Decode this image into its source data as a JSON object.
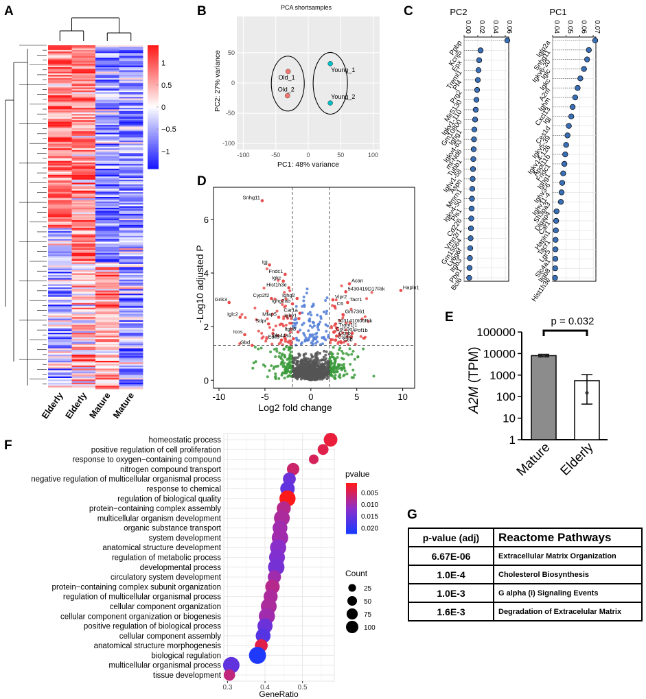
{
  "panel_labels": {
    "a": "A",
    "b": "B",
    "c": "C",
    "d": "D",
    "e": "E",
    "f": "F",
    "g": "G"
  },
  "chart_data": [
    {
      "type": "heatmap",
      "panel": "A",
      "columns": [
        "Elderly",
        "Elderly",
        "Mature",
        "Mature"
      ],
      "colorbar_ticks": [
        {
          "v": 1,
          "label": "1"
        },
        {
          "v": 0.5,
          "label": "0.5"
        },
        {
          "v": 0,
          "label": "0"
        },
        {
          "v": -0.5,
          "label": "−0.5"
        },
        {
          "v": -1,
          "label": "−1"
        }
      ],
      "colorbar_range": [
        -1.4,
        1.4
      ],
      "colors": {
        "low": "#1a1aff",
        "mid": "#ffffff",
        "high": "#ff1a1a"
      }
    },
    {
      "type": "scatter",
      "panel": "B",
      "title": "PCA shortsamples",
      "xlabel": "PC1: 48% variance",
      "ylabel": "PC2: 27% variance",
      "xlim": [
        -110,
        110
      ],
      "ylim": [
        -110,
        110
      ],
      "xticks": [
        -100,
        -50,
        0,
        50,
        100
      ],
      "yticks": [
        50,
        0,
        -50,
        -100
      ],
      "points": [
        {
          "label": "Old_1",
          "x": -31,
          "y": 19,
          "group": "old"
        },
        {
          "label": "Old_2",
          "x": -32,
          "y": -21,
          "group": "old"
        },
        {
          "label": "Young_1",
          "x": 34,
          "y": 32,
          "group": "young"
        },
        {
          "label": "Young_2",
          "x": 34,
          "y": -33,
          "group": "young"
        }
      ],
      "colors": {
        "old": "#f8766d",
        "young": "#00bfc4",
        "panel_bg": "#ebebeb"
      }
    },
    {
      "type": "scatter",
      "panel": "C-PC2",
      "title": "PC2",
      "axis_range": [
        0.0,
        0.065
      ],
      "axis_ticks": [
        {
          "v": 0,
          "label": "0.00"
        },
        {
          "v": 0.02,
          "label": "0.02"
        },
        {
          "v": 0.04,
          "label": "0.04"
        },
        {
          "v": 0.06,
          "label": "0.06"
        }
      ],
      "genes": [
        "Ppbp",
        "Kcnj5",
        "Epx",
        "Treml1",
        "Pf4",
        "Prg2",
        "Mir5130",
        "Igkv1-110",
        "Gm10800",
        "Ighg1",
        "Igkv4-63",
        "mt-Nd6",
        "Tubb1",
        "Ighv1-58",
        "Aspn",
        "Mmrn1",
        "Igkv4-50",
        "Pls1",
        "Cd226",
        "Vmn2r1",
        "Gm15564",
        "Ly6g6f",
        "Itgb3",
        "Pbp1",
        "Bcl6"
      ],
      "values": [
        0.063,
        0.024,
        0.022,
        0.021,
        0.02,
        0.019,
        0.018,
        0.017,
        0.016,
        0.015,
        0.0145,
        0.014,
        0.0135,
        0.013,
        0.0125,
        0.012,
        0.0115,
        0.011,
        0.0105,
        0.01,
        0.0095,
        0.009,
        0.0085,
        0.008,
        0.0075
      ]
    },
    {
      "type": "scatter",
      "panel": "C-PC1",
      "title": "PC1",
      "axis_range": [
        0.04,
        0.072
      ],
      "axis_ticks": [
        {
          "v": 0.04,
          "label": "0.04"
        },
        {
          "v": 0.05,
          "label": "0.05"
        },
        {
          "v": 0.06,
          "label": "0.06"
        },
        {
          "v": 0.07,
          "label": "0.07"
        }
      ],
      "genes": [
        "Iglp2a",
        "Snhg11",
        "Igkv6-20",
        "Iglc",
        "Igkc",
        "A2m",
        "Ighm",
        "Cxcl13",
        "Igj",
        "Ces1d",
        "Igkv5-39",
        "Igkv14-126",
        "Apol11b",
        "Fndc1",
        "Ighg1",
        "Ighv3-6",
        "Ighv11-4",
        "Sh3pa3",
        "Dlgap4",
        "Car1",
        "Hapln1",
        "Tacr1",
        "Lgr5",
        "Slc4a1",
        "Itgb8",
        "Hist1h3e"
      ],
      "values": [
        0.0715,
        0.0668,
        0.0655,
        0.0632,
        0.0605,
        0.0585,
        0.0567,
        0.0548,
        0.0538,
        0.052,
        0.051,
        0.05,
        0.0493,
        0.0487,
        0.0478,
        0.0471,
        0.0466,
        0.0461,
        0.0429,
        0.0426,
        0.0424,
        0.0422,
        0.0421,
        0.042,
        0.0419,
        0.0418
      ]
    },
    {
      "type": "scatter",
      "panel": "D",
      "xlabel": "Log2 fold change",
      "ylabel": "-Log10 adjusted P",
      "xlim": [
        -10.6,
        11.3
      ],
      "ylim": [
        -0.3,
        7.2
      ],
      "xticks": [
        -10,
        -5,
        0,
        5,
        10
      ],
      "yticks": [
        0,
        2,
        4,
        6
      ],
      "fc_threshold": 2,
      "p_threshold": 1.3,
      "labeled_points": [
        {
          "label": "Snhg11",
          "x": -5.3,
          "y": 6.7
        },
        {
          "label": "Igj",
          "x": -4.5,
          "y": 4.3
        },
        {
          "label": "Fndc1",
          "x": -2.8,
          "y": 3.95
        },
        {
          "label": "Igkc",
          "x": -3.0,
          "y": 3.7
        },
        {
          "label": "Hist1h3e",
          "x": -2.4,
          "y": 3.45
        },
        {
          "label": "Cyp2f2",
          "x": -4.3,
          "y": 3.05
        },
        {
          "label": "Ighg2",
          "x": -1.5,
          "y": 3.05
        },
        {
          "label": "Ighg2ab",
          "x": -2.0,
          "y": 2.85
        },
        {
          "label": "Mfap5",
          "x": -3.5,
          "y": 2.35
        },
        {
          "label": "Ighv1",
          "x": -1.3,
          "y": 2.3
        },
        {
          "label": "Car1a",
          "x": -1.2,
          "y": 2.5
        },
        {
          "label": "Grik3",
          "x": -8.9,
          "y": 2.9
        },
        {
          "label": "Iglc2",
          "x": -7.7,
          "y": 2.35
        },
        {
          "label": "Sdpr",
          "x": -4.6,
          "y": 2.1
        },
        {
          "label": "Icos",
          "x": -7.2,
          "y": 1.7
        },
        {
          "label": "Itgb8",
          "x": -1.4,
          "y": 1.8
        },
        {
          "label": "Edil3",
          "x": -3.2,
          "y": 1.5
        },
        {
          "label": "Dlo44a5",
          "x": -1.9,
          "y": 1.55
        },
        {
          "label": "Gbd",
          "x": -6.4,
          "y": 1.3
        },
        {
          "label": "Acan",
          "x": 4.2,
          "y": 3.6
        },
        {
          "label": "5430419D17Rik",
          "x": 3.8,
          "y": 3.3
        },
        {
          "label": "Hapln1",
          "x": 9.8,
          "y": 3.35
        },
        {
          "label": "Vipr2",
          "x": 2.4,
          "y": 3.0
        },
        {
          "label": "Tacr1",
          "x": 4.0,
          "y": 2.9
        },
        {
          "label": "C6",
          "x": 2.6,
          "y": 2.75
        },
        {
          "label": "Gm7361",
          "x": 3.5,
          "y": 2.45
        },
        {
          "label": "5031410I06Rik",
          "x": 2.7,
          "y": 2.1
        },
        {
          "label": "Tram1l1",
          "x": 2.8,
          "y": 1.95
        },
        {
          "label": "Col10a1",
          "x": 2.5,
          "y": 1.8
        },
        {
          "label": "Ccnb2",
          "x": 2.8,
          "y": 1.65
        },
        {
          "label": "Pof1b",
          "x": 4.5,
          "y": 1.75
        },
        {
          "label": "Cstrb2",
          "x": 2.7,
          "y": 1.5
        },
        {
          "label": "C6b",
          "x": 3.3,
          "y": 1.4
        }
      ],
      "colors": {
        "ns": "#555555",
        "fc": "#3a9a3a",
        "p": "#4f7bd6",
        "both": "#e84a4a"
      }
    },
    {
      "type": "bar",
      "panel": "E",
      "categories": [
        "Mature",
        "Elderly"
      ],
      "values": [
        8000,
        550
      ],
      "error_low": [
        7000,
        45
      ],
      "error_high": [
        9200,
        1050
      ],
      "points": [
        [
          8000
        ],
        [
          150
        ]
      ],
      "ylabel_gene": "A2M",
      "ylabel_unit": " (TPM)",
      "yscale": "log",
      "ylim": [
        1,
        100000
      ],
      "yticks": [
        {
          "v": 1,
          "label": "1"
        },
        {
          "v": 10,
          "label": "10"
        },
        {
          "v": 100,
          "label": "100"
        },
        {
          "v": 1000,
          "label": "1000"
        },
        {
          "v": 10000,
          "label": "10000"
        },
        {
          "v": 100000,
          "label": "100000"
        }
      ],
      "annotation": "p = 0.032",
      "colors": [
        "#8c8c8c",
        "#ffffff"
      ]
    },
    {
      "type": "scatter",
      "panel": "F",
      "xlabel": "GeneRatio",
      "xlim": [
        0.29,
        0.585
      ],
      "xticks": [
        0.3,
        0.4,
        0.5
      ],
      "terms": [
        "homeostatic process",
        "positive regulation of cell proliferation",
        "response to oxygen−containing compound",
        "nitrogen compound transport",
        "negative regulation of multicellular organismal process",
        "response to chemical",
        "regulation of biological quality",
        "protein−containing complex assembly",
        "multicellular organism development",
        "organic substance transport",
        "system development",
        "anatomical structure development",
        "regulation of metabolic process",
        "developmental process",
        "circulatory system development",
        "protein−containing complex subunit organization",
        "regulation of multicellular organismal process",
        "cellular component organization",
        "cellular component organization or biogenesis",
        "positive regulation of biological process",
        "cellular component assembly",
        "anatomical structure morphogenesis",
        "biological regulation",
        "multicellular organismal process",
        "tissue development"
      ],
      "gene_ratio": [
        0.575,
        0.555,
        0.53,
        0.475,
        0.465,
        0.46,
        0.46,
        0.45,
        0.445,
        0.44,
        0.44,
        0.435,
        0.432,
        0.43,
        0.425,
        0.42,
        0.415,
        0.41,
        0.405,
        0.4,
        0.395,
        0.39,
        0.38,
        0.31,
        0.305
      ],
      "count": [
        60,
        30,
        20,
        45,
        50,
        70,
        95,
        65,
        90,
        75,
        100,
        95,
        90,
        100,
        55,
        70,
        65,
        90,
        95,
        80,
        75,
        50,
        110,
        100,
        35
      ],
      "pvalue": [
        0.003,
        0.004,
        0.005,
        0.006,
        0.015,
        0.016,
        0.001,
        0.008,
        0.009,
        0.01,
        0.01,
        0.012,
        0.013,
        0.014,
        0.01,
        0.008,
        0.009,
        0.009,
        0.01,
        0.015,
        0.017,
        0.004,
        0.022,
        0.016,
        0.007
      ],
      "legend_color_title": "pvalue",
      "legend_color_ticks": [
        {
          "v": 0.005,
          "label": "0.005"
        },
        {
          "v": 0.01,
          "label": "0.010"
        },
        {
          "v": 0.015,
          "label": "0.015"
        },
        {
          "v": 0.02,
          "label": "0.020"
        }
      ],
      "pvalue_range": [
        0.001,
        0.0225
      ],
      "legend_size_title": "Count",
      "legend_size_ticks": [
        {
          "v": 25,
          "label": "25"
        },
        {
          "v": 50,
          "label": "50"
        },
        {
          "v": 75,
          "label": "75"
        },
        {
          "v": 100,
          "label": "100"
        }
      ]
    },
    {
      "type": "table",
      "panel": "G",
      "headers": [
        "p-value (adj)",
        "Reactome Pathways"
      ],
      "rows": [
        [
          "6.67E-06",
          "Extracellular Matrix Organization"
        ],
        [
          "1.0E-4",
          "Cholesterol Biosynthesis"
        ],
        [
          "1.0E-3",
          "G alpha (i) Signaling Events"
        ],
        [
          "1.6E-3",
          "Degradation of Extracelular Matrix"
        ]
      ]
    }
  ]
}
